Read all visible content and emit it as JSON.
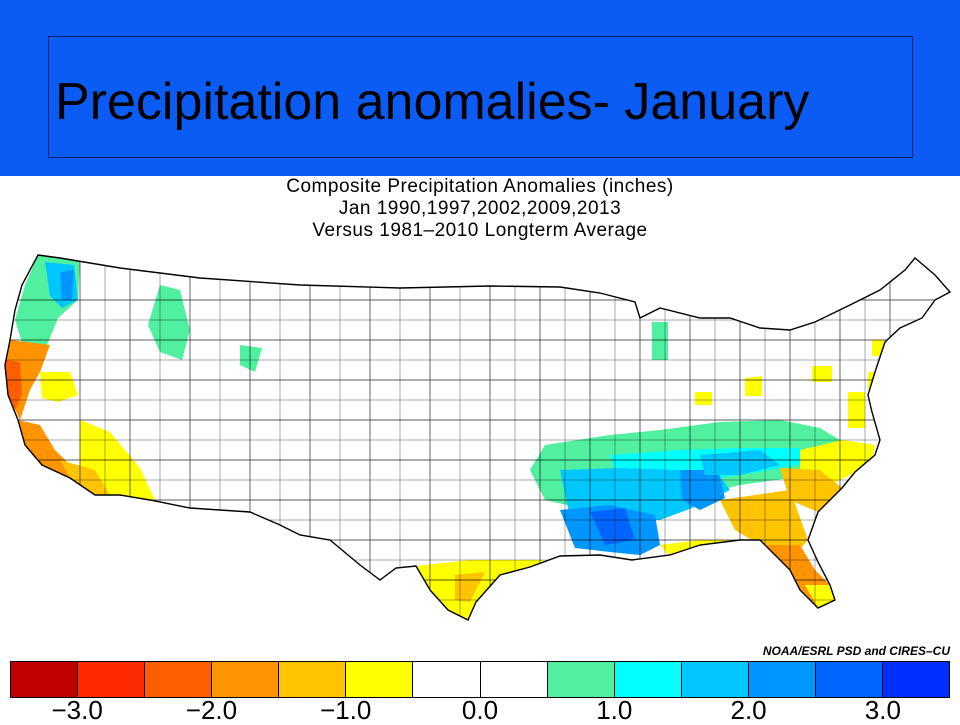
{
  "slide": {
    "title": "Precipitation anomalies- January"
  },
  "map": {
    "title_lines": [
      "Composite Precipitation Anomalies (inches)",
      "Jan 1990,1997,2002,2009,2013",
      "Versus 1981–2010 Longterm Average"
    ],
    "credit": "NOAA/ESRL PSD and CIRES–CU"
  },
  "colorbar": {
    "colors": [
      "#c00000",
      "#ff2a00",
      "#ff5e00",
      "#ff9400",
      "#ffc400",
      "#ffff00",
      "#ffffff",
      "#ffffff",
      "#50f0a0",
      "#00ffff",
      "#00c8ff",
      "#0096ff",
      "#0064ff",
      "#0030ff"
    ],
    "ticks": [
      "−3.0",
      "−2.0",
      "−1.0",
      "0.0",
      "1.0",
      "2.0",
      "3.0"
    ]
  }
}
